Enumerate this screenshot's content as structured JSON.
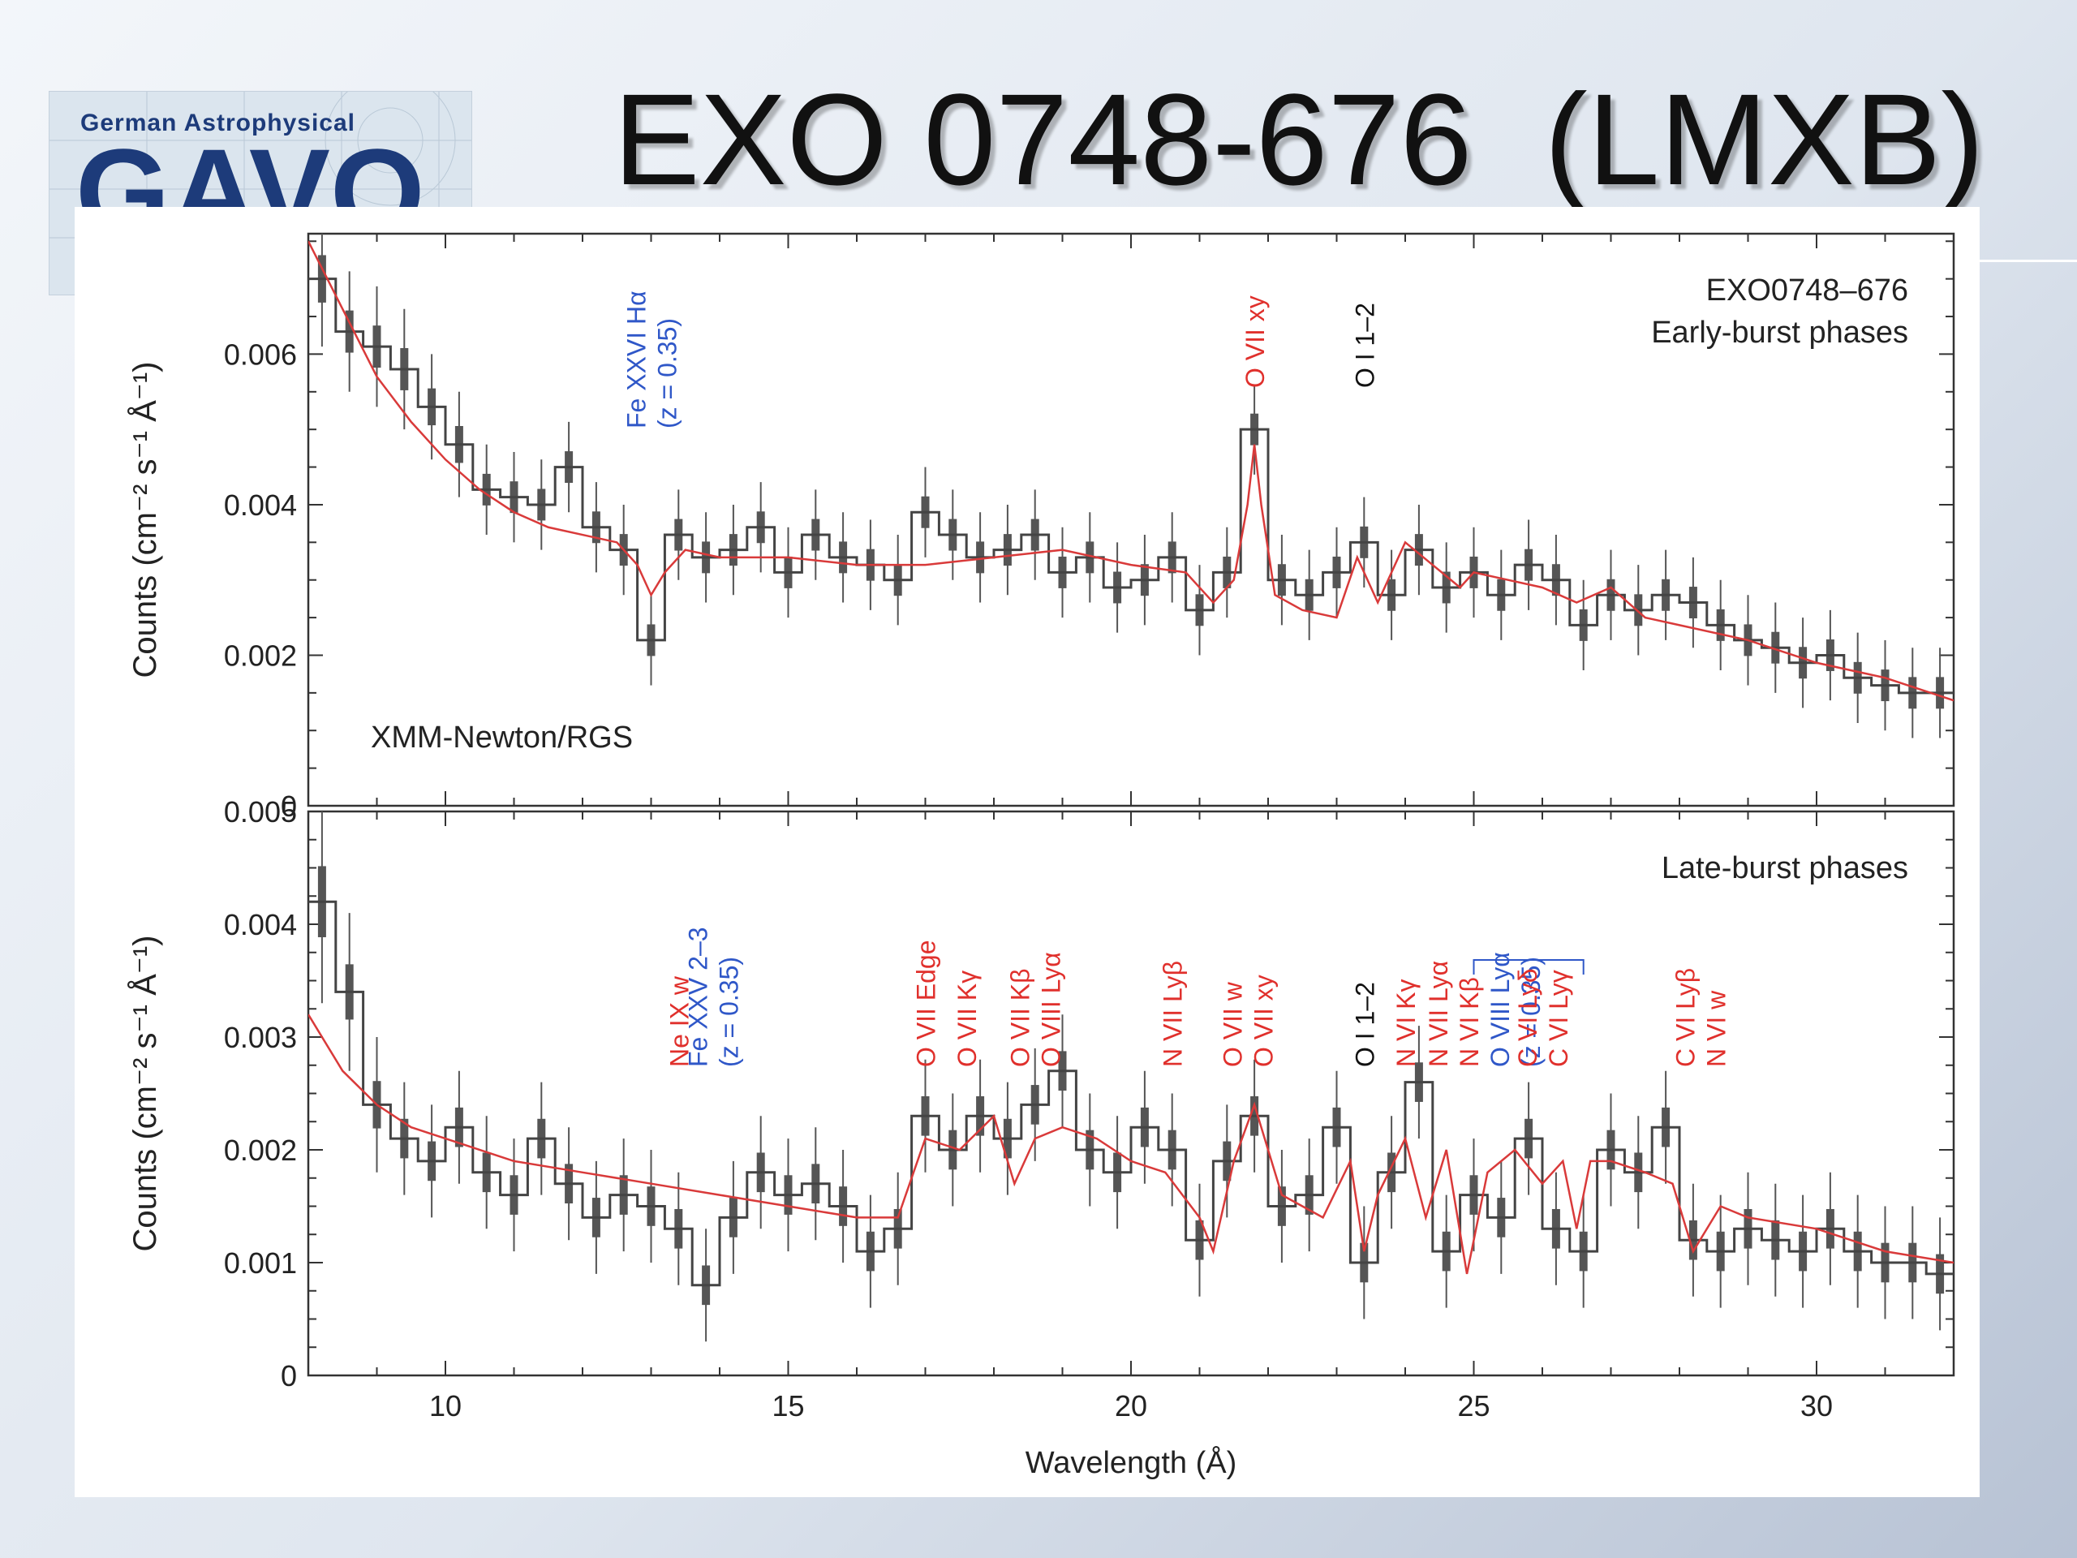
{
  "slide": {
    "title": "EXO 0748-676  (LMXB)",
    "logo_top": "German Astrophysical",
    "logo_big": "GAVO"
  },
  "colors": {
    "data": "#555555",
    "model": "#d93a3a",
    "label_red": "#e0302c",
    "label_blue": "#2f57c8",
    "label_black": "#111111"
  },
  "chart_data": [
    {
      "type": "line",
      "panel": "top",
      "labels": [
        "EXO0748–676",
        "Early-burst phases"
      ],
      "instrument": "XMM-Newton/RGS",
      "ylabel": "Counts (cm⁻² s⁻¹ Å⁻¹)",
      "xlabel": "",
      "xlim": [
        8,
        32
      ],
      "ylim": [
        0,
        0.0076
      ],
      "yticks": [
        0,
        0.002,
        0.004,
        0.006
      ],
      "yticklabels": [
        "0",
        "0.002",
        "0.004",
        "0.006"
      ],
      "series": [
        {
          "role": "data",
          "x": [
            8.2,
            8.6,
            9.0,
            9.4,
            9.8,
            10.2,
            10.6,
            11.0,
            11.4,
            11.8,
            12.2,
            12.6,
            13.0,
            13.4,
            13.8,
            14.2,
            14.6,
            15.0,
            15.4,
            15.8,
            16.2,
            16.6,
            17.0,
            17.4,
            17.8,
            18.2,
            18.6,
            19.0,
            19.4,
            19.8,
            20.2,
            20.6,
            21.0,
            21.4,
            21.8,
            22.2,
            22.6,
            23.0,
            23.4,
            23.8,
            24.2,
            24.6,
            25.0,
            25.4,
            25.8,
            26.2,
            26.6,
            27.0,
            27.4,
            27.8,
            28.2,
            28.6,
            29.0,
            29.4,
            29.8,
            30.2,
            30.6,
            31.0,
            31.4,
            31.8
          ],
          "y": [
            0.007,
            0.0063,
            0.0061,
            0.0058,
            0.0053,
            0.0048,
            0.0042,
            0.0041,
            0.004,
            0.0045,
            0.0037,
            0.0034,
            0.0022,
            0.0036,
            0.0033,
            0.0034,
            0.0037,
            0.0031,
            0.0036,
            0.0033,
            0.0032,
            0.003,
            0.0039,
            0.0036,
            0.0033,
            0.0034,
            0.0036,
            0.0031,
            0.0033,
            0.0029,
            0.003,
            0.0033,
            0.0026,
            0.0031,
            0.005,
            0.003,
            0.0028,
            0.0031,
            0.0035,
            0.0028,
            0.0034,
            0.0029,
            0.0031,
            0.0028,
            0.0032,
            0.003,
            0.0024,
            0.0028,
            0.0026,
            0.0028,
            0.0027,
            0.0024,
            0.0022,
            0.0021,
            0.0019,
            0.002,
            0.0017,
            0.0016,
            0.0015,
            0.0015
          ],
          "yerr": [
            0.0009,
            0.0008,
            0.0008,
            0.0008,
            0.0007,
            0.0007,
            0.0006,
            0.0006,
            0.0006,
            0.0006,
            0.0006,
            0.0006,
            0.0006,
            0.0006,
            0.0006,
            0.0006,
            0.0006,
            0.0006,
            0.0006,
            0.0006,
            0.0006,
            0.0006,
            0.0006,
            0.0006,
            0.0006,
            0.0006,
            0.0006,
            0.0006,
            0.0006,
            0.0006,
            0.0006,
            0.0006,
            0.0006,
            0.0006,
            0.0006,
            0.0006,
            0.0006,
            0.0006,
            0.0006,
            0.0006,
            0.0006,
            0.0006,
            0.0006,
            0.0006,
            0.0006,
            0.0006,
            0.0006,
            0.0006,
            0.0006,
            0.0006,
            0.0006,
            0.0006,
            0.0006,
            0.0006,
            0.0006,
            0.0006,
            0.0006,
            0.0006,
            0.0006,
            0.0006
          ]
        },
        {
          "role": "model",
          "x": [
            8.0,
            8.5,
            9.0,
            9.5,
            10.0,
            10.5,
            11.0,
            11.5,
            12.0,
            12.5,
            12.8,
            13.0,
            13.2,
            13.5,
            14.0,
            15.0,
            16.0,
            17.0,
            18.0,
            19.0,
            20.0,
            20.8,
            21.2,
            21.5,
            21.7,
            21.8,
            21.9,
            22.1,
            22.5,
            23.0,
            23.3,
            23.6,
            24.0,
            24.4,
            24.8,
            25.0,
            25.5,
            26.0,
            26.5,
            27.0,
            27.5,
            28.0,
            29.0,
            30.0,
            31.0,
            32.0
          ],
          "y": [
            0.0075,
            0.0066,
            0.0057,
            0.0051,
            0.0046,
            0.0042,
            0.0039,
            0.0037,
            0.0036,
            0.0035,
            0.0032,
            0.0028,
            0.0031,
            0.0034,
            0.0033,
            0.0033,
            0.0032,
            0.0032,
            0.0033,
            0.0034,
            0.0032,
            0.0031,
            0.0027,
            0.003,
            0.004,
            0.0048,
            0.004,
            0.0028,
            0.0026,
            0.0025,
            0.0033,
            0.0027,
            0.0035,
            0.0032,
            0.0029,
            0.0031,
            0.003,
            0.0029,
            0.0027,
            0.0029,
            0.0025,
            0.0024,
            0.0022,
            0.0019,
            0.0017,
            0.0014
          ]
        }
      ],
      "annotations": [
        {
          "lines": [
            "Fe XXVI Hα",
            "(z = 0.35)"
          ],
          "x": 13.0,
          "color": "blue"
        },
        {
          "lines": [
            "O VII xy"
          ],
          "x": 21.8,
          "color": "red"
        },
        {
          "lines": [
            "O I 1–2"
          ],
          "x": 23.4,
          "color": "black"
        }
      ]
    },
    {
      "type": "line",
      "panel": "bottom",
      "labels": [
        "Late-burst phases"
      ],
      "ylabel": "Counts (cm⁻² s⁻¹ Å⁻¹)",
      "xlabel": "Wavelength (Å)",
      "xlim": [
        8,
        32
      ],
      "ylim": [
        0,
        0.005
      ],
      "xticks": [
        10,
        15,
        20,
        25,
        30
      ],
      "xticklabels": [
        "10",
        "15",
        "20",
        "25",
        "30"
      ],
      "yticks": [
        0,
        0.001,
        0.002,
        0.003,
        0.004,
        0.005
      ],
      "yticklabels": [
        "0",
        "0.001",
        "0.002",
        "0.003",
        "0.004",
        "0.005"
      ],
      "series": [
        {
          "role": "data",
          "x": [
            8.2,
            8.6,
            9.0,
            9.4,
            9.8,
            10.2,
            10.6,
            11.0,
            11.4,
            11.8,
            12.2,
            12.6,
            13.0,
            13.4,
            13.8,
            14.2,
            14.6,
            15.0,
            15.4,
            15.8,
            16.2,
            16.6,
            17.0,
            17.4,
            17.8,
            18.2,
            18.6,
            19.0,
            19.4,
            19.8,
            20.2,
            20.6,
            21.0,
            21.4,
            21.8,
            22.2,
            22.6,
            23.0,
            23.4,
            23.8,
            24.2,
            24.6,
            25.0,
            25.4,
            25.8,
            26.2,
            26.6,
            27.0,
            27.4,
            27.8,
            28.2,
            28.6,
            29.0,
            29.4,
            29.8,
            30.2,
            30.6,
            31.0,
            31.4,
            31.8
          ],
          "y": [
            0.0042,
            0.0034,
            0.0024,
            0.0021,
            0.0019,
            0.0022,
            0.0018,
            0.0016,
            0.0021,
            0.0017,
            0.0014,
            0.0016,
            0.0015,
            0.0013,
            0.0008,
            0.0014,
            0.0018,
            0.0016,
            0.0017,
            0.0015,
            0.0011,
            0.0013,
            0.0023,
            0.002,
            0.0023,
            0.0021,
            0.0024,
            0.0027,
            0.002,
            0.0018,
            0.0022,
            0.002,
            0.0012,
            0.0019,
            0.0023,
            0.0015,
            0.0016,
            0.0022,
            0.001,
            0.0018,
            0.0026,
            0.0011,
            0.0016,
            0.0014,
            0.0021,
            0.0013,
            0.0011,
            0.002,
            0.0018,
            0.0022,
            0.0012,
            0.0011,
            0.0013,
            0.0012,
            0.0011,
            0.0013,
            0.0011,
            0.001,
            0.001,
            0.0009
          ],
          "yerr": [
            0.0009,
            0.0007,
            0.0006,
            0.0005,
            0.0005,
            0.0005,
            0.0005,
            0.0005,
            0.0005,
            0.0005,
            0.0005,
            0.0005,
            0.0005,
            0.0005,
            0.0005,
            0.0005,
            0.0005,
            0.0005,
            0.0005,
            0.0005,
            0.0005,
            0.0005,
            0.0005,
            0.0005,
            0.0005,
            0.0005,
            0.0005,
            0.0005,
            0.0005,
            0.0005,
            0.0005,
            0.0005,
            0.0005,
            0.0005,
            0.0005,
            0.0005,
            0.0005,
            0.0005,
            0.0005,
            0.0005,
            0.0005,
            0.0005,
            0.0005,
            0.0005,
            0.0005,
            0.0005,
            0.0005,
            0.0005,
            0.0005,
            0.0005,
            0.0005,
            0.0005,
            0.0005,
            0.0005,
            0.0005,
            0.0005,
            0.0005,
            0.0005,
            0.0005,
            0.0005
          ]
        },
        {
          "role": "model",
          "x": [
            8.0,
            8.5,
            9.0,
            9.5,
            10.0,
            11.0,
            12.0,
            13.0,
            14.0,
            15.0,
            16.0,
            16.6,
            17.0,
            17.5,
            18.0,
            18.3,
            18.6,
            19.0,
            19.5,
            20.0,
            20.5,
            21.0,
            21.2,
            21.5,
            21.8,
            22.2,
            22.8,
            23.2,
            23.4,
            23.6,
            24.0,
            24.3,
            24.6,
            24.9,
            25.2,
            25.6,
            26.0,
            26.3,
            26.5,
            26.7,
            27.0,
            27.5,
            27.9,
            28.2,
            28.6,
            29.0,
            30.0,
            31.0,
            32.0
          ],
          "y": [
            0.0032,
            0.0027,
            0.0024,
            0.0022,
            0.0021,
            0.0019,
            0.0018,
            0.0017,
            0.0016,
            0.0015,
            0.0014,
            0.0014,
            0.0021,
            0.002,
            0.0023,
            0.0017,
            0.0021,
            0.0022,
            0.0021,
            0.0019,
            0.0018,
            0.0014,
            0.0011,
            0.0019,
            0.0024,
            0.0016,
            0.0014,
            0.0019,
            0.0011,
            0.0016,
            0.0021,
            0.0014,
            0.002,
            0.0009,
            0.0018,
            0.002,
            0.0017,
            0.0019,
            0.0013,
            0.0019,
            0.0019,
            0.0018,
            0.0017,
            0.0011,
            0.0015,
            0.0014,
            0.0013,
            0.0011,
            0.001
          ]
        }
      ],
      "annotations": [
        {
          "lines": [
            "Ne IX w"
          ],
          "x": 13.4,
          "color": "red"
        },
        {
          "lines": [
            "Fe XXV 2–3",
            "(z = 0.35)"
          ],
          "x": 13.9,
          "color": "blue"
        },
        {
          "lines": [
            "O VII Edge"
          ],
          "x": 17.0,
          "color": "red"
        },
        {
          "lines": [
            "O VII Kγ"
          ],
          "x": 17.6,
          "color": "red"
        },
        {
          "lines": [
            "O VII Kβ",
            "O VIII Lyα"
          ],
          "x": 18.6,
          "color": "red"
        },
        {
          "lines": [
            "N VII Lyβ"
          ],
          "x": 20.6,
          "color": "red"
        },
        {
          "lines": [
            "O VII w",
            "O VII xy"
          ],
          "x": 21.7,
          "color": "red"
        },
        {
          "lines": [
            "O I 1–2"
          ],
          "x": 23.4,
          "color": "black"
        },
        {
          "lines": [
            "N VI Kγ"
          ],
          "x": 24.0,
          "color": "red"
        },
        {
          "lines": [
            "N VII Lyα",
            "N VI Kβ"
          ],
          "x": 24.7,
          "color": "red"
        },
        {
          "lines": [
            "O VIII Lyα",
            "(z = 0.35)"
          ],
          "x": 25.6,
          "color": "blue"
        },
        {
          "lines": [
            "C VI Lyδ",
            "C VI Lyγ"
          ],
          "x": 26.0,
          "color": "red"
        },
        {
          "lines": [
            "C VI Lyβ",
            "N VI w"
          ],
          "x": 28.3,
          "color": "red"
        }
      ]
    }
  ]
}
